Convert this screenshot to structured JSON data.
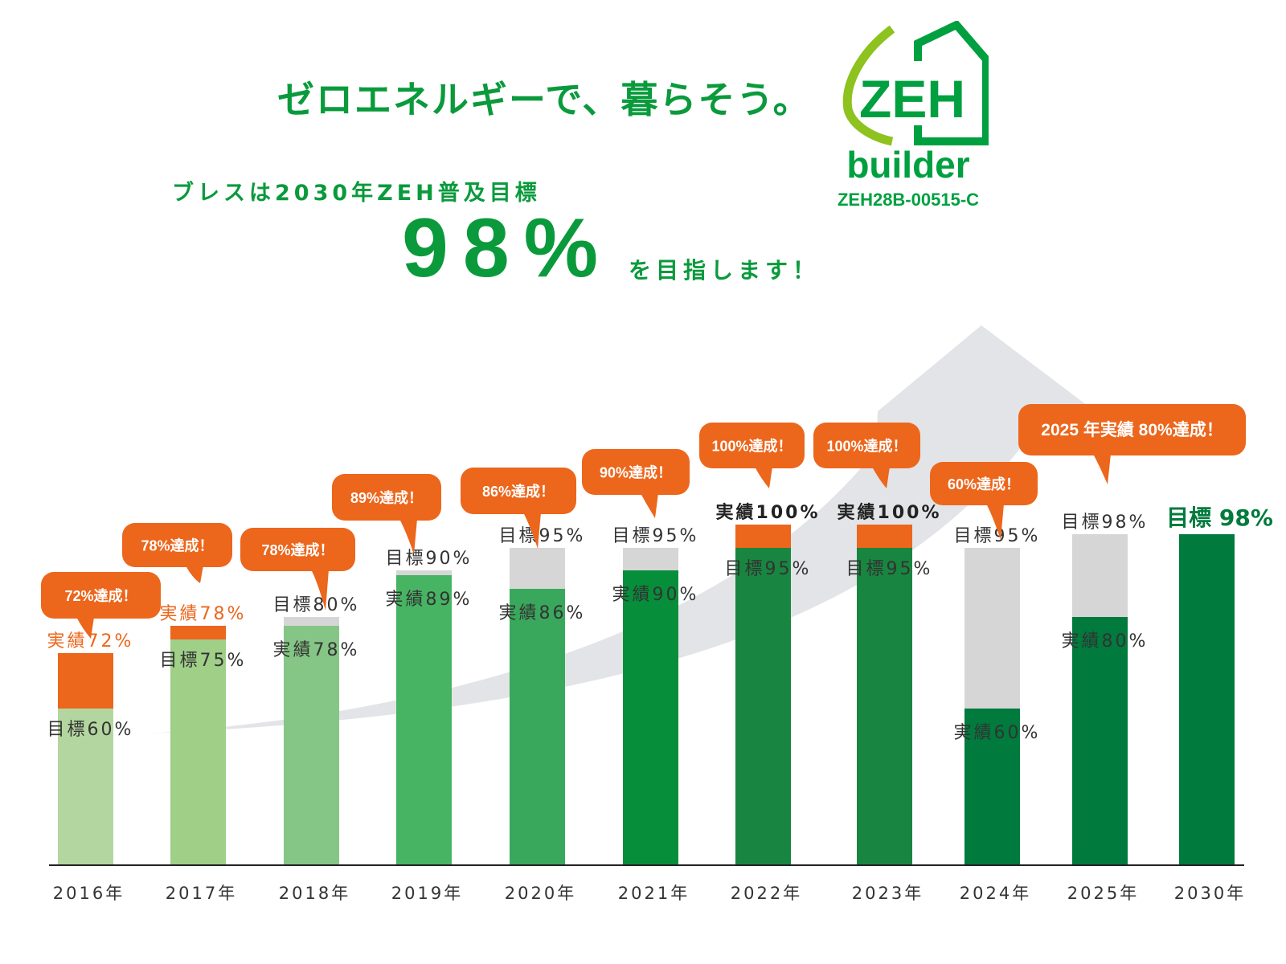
{
  "header": {
    "headline": "ゼロエネルギーで、暮らそう。",
    "subtitle": "ブレスは2030年ZEH普及目標",
    "big_value": "98%",
    "aim_text": "を目指します！"
  },
  "logo": {
    "mark": "ZEH",
    "word": "builder",
    "code": "ZEH28B-00515-C"
  },
  "colors": {
    "accent_green": "#0a9a3c",
    "orange": "#ec661c",
    "gray": "#d6d6d6",
    "arrow": "#e3e4e7"
  },
  "chart_data": {
    "type": "bar",
    "categories": [
      "2016年",
      "2017年",
      "2018年",
      "2019年",
      "2020年",
      "2021年",
      "2022年",
      "2023年",
      "2024年",
      "2025年",
      "2030年"
    ],
    "series": [
      {
        "name": "目標",
        "values": [
          60,
          75,
          80,
          90,
          95,
          95,
          95,
          95,
          95,
          98,
          98
        ]
      },
      {
        "name": "実績",
        "values": [
          72,
          78,
          78,
          89,
          86,
          90,
          100,
          100,
          60,
          80,
          null
        ]
      }
    ],
    "bars": [
      {
        "year": "2016年",
        "target": 60,
        "actual": 72,
        "target_label": "目標60%",
        "actual_label": "実績72%",
        "bubble": "72%達成！",
        "color": "#b3d6a0",
        "label_color": "#ec661c"
      },
      {
        "year": "2017年",
        "target": 75,
        "actual": 78,
        "target_label": "目標75%",
        "actual_label": "実績78%",
        "bubble": "78%達成！",
        "color": "#a0cf88",
        "label_color": "#ec661c"
      },
      {
        "year": "2018年",
        "target": 80,
        "actual": 78,
        "target_label": "目標80%",
        "actual_label": "実績78%",
        "bubble": "78%達成！",
        "color": "#85c585",
        "label_color": "#333333"
      },
      {
        "year": "2019年",
        "target": 90,
        "actual": 89,
        "target_label": "目標90%",
        "actual_label": "実績89%",
        "bubble": "89%達成！",
        "color": "#47b464",
        "label_color": "#333333"
      },
      {
        "year": "2020年",
        "target": 95,
        "actual": 86,
        "target_label": "目標95%",
        "actual_label": "実績86%",
        "bubble": "86%達成！",
        "color": "#3aa85c",
        "label_color": "#333333"
      },
      {
        "year": "2021年",
        "target": 95,
        "actual": 90,
        "target_label": "目標95%",
        "actual_label": "実績90%",
        "bubble": "90%達成！",
        "color": "#078e3a",
        "label_color": "#333333"
      },
      {
        "year": "2022年",
        "target": 95,
        "actual": 100,
        "target_label": "目標95%",
        "actual_label": "実績100%",
        "bubble": "100%達成！",
        "color": "#188540",
        "label_color": "#222222"
      },
      {
        "year": "2023年",
        "target": 95,
        "actual": 100,
        "target_label": "目標95%",
        "actual_label": "実績100%",
        "bubble": "100%達成！",
        "color": "#188540",
        "label_color": "#222222"
      },
      {
        "year": "2024年",
        "target": 95,
        "actual": 60,
        "target_label": "目標95%",
        "actual_label": "実績60%",
        "bubble": "60%達成！",
        "color": "#007a3d",
        "label_color": "#333333"
      },
      {
        "year": "2025年",
        "target": 98,
        "actual": 80,
        "target_label": "目標98%",
        "actual_label": "実績80%",
        "bubble": "2025 年実績 80%達成！",
        "color": "#007a3d",
        "label_color": "#333333"
      },
      {
        "year": "2030年",
        "target": 98,
        "actual": null,
        "target_label": "目標 98%",
        "actual_label": null,
        "bubble": null,
        "color": "#007a3d",
        "label_color": "#007a3d"
      }
    ],
    "xlabel": "",
    "ylabel": "",
    "grid": false,
    "legend": "none"
  }
}
